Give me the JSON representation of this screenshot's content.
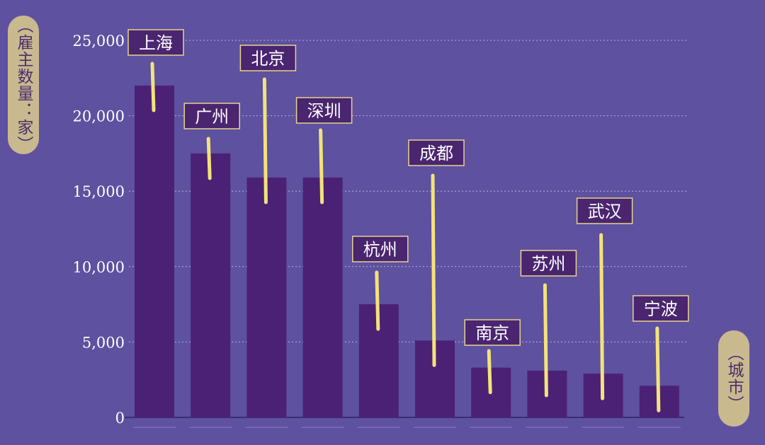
{
  "chart_data": {
    "type": "bar",
    "ylabel": "（雇主数量：家）",
    "xlabel": "（城市）",
    "categories": [
      "上海",
      "广州",
      "北京",
      "深圳",
      "杭州",
      "成都",
      "南京",
      "苏州",
      "武汉",
      "宁波"
    ],
    "values": [
      22000,
      17500,
      15900,
      15900,
      7500,
      5100,
      3300,
      3100,
      2900,
      2100
    ],
    "yticks": [
      "0",
      "5,000",
      "10,000",
      "15,000",
      "20,000",
      "25,000"
    ],
    "ylim": [
      0,
      25000
    ],
    "grid": true,
    "colors": {
      "background": "#5d51a0",
      "bar": "#4b2175",
      "leader": "#f3e27a",
      "label_bg": "#4a2570",
      "label_border": "#e8d488",
      "tick_text": "#ffffff",
      "grid": "#d0c8ee",
      "pill": "#c9b98f",
      "pill_text": "#4a2f6e"
    }
  }
}
